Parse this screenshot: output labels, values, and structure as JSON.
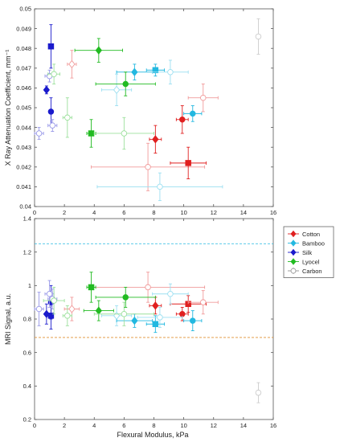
{
  "x_axis_label": "Flexural Modulus, kPa",
  "legend": [
    {
      "name": "Cotton",
      "color": "#e02020"
    },
    {
      "name": "Bamboo",
      "color": "#22b8e0"
    },
    {
      "name": "Silk",
      "color": "#1a1acc"
    },
    {
      "name": "Lyocel",
      "color": "#22bb22"
    },
    {
      "name": "Carbon",
      "color": "#909090"
    }
  ],
  "chart_data": [
    {
      "type": "scatter",
      "title": "",
      "xlabel": "",
      "ylabel": "X Ray Attenuation Coefficient, mm⁻¹",
      "xlim": [
        0,
        16
      ],
      "ylim": [
        0.04,
        0.05
      ],
      "xticks": [
        "0",
        "2",
        "4",
        "6",
        "8",
        "10",
        "12",
        "14",
        "16"
      ],
      "yticks": [
        "0.04",
        "0.041",
        "0.042",
        "0.043",
        "0.044",
        "0.045",
        "0.046",
        "0.047",
        "0.048",
        "0.049",
        "0.05"
      ],
      "grid": false,
      "points": [
        {
          "series": "Cotton",
          "marker": "diamond",
          "filled": false,
          "x": 2.5,
          "y": 0.0472,
          "xerr": 0.3,
          "yerr": 0.0007
        },
        {
          "series": "Cotton",
          "marker": "diamond",
          "filled": true,
          "x": 8.1,
          "y": 0.0434,
          "xerr": 0.4,
          "yerr": 0.0007
        },
        {
          "series": "Cotton",
          "marker": "circle",
          "filled": false,
          "x": 7.6,
          "y": 0.042,
          "xerr": 3.8,
          "yerr": 0.0012
        },
        {
          "series": "Cotton",
          "marker": "circle",
          "filled": true,
          "x": 9.9,
          "y": 0.0444,
          "xerr": 0.4,
          "yerr": 0.0007
        },
        {
          "series": "Cotton",
          "marker": "square",
          "filled": true,
          "x": 10.3,
          "y": 0.0422,
          "xerr": 1.2,
          "yerr": 0.0008
        },
        {
          "series": "Cotton",
          "marker": "circle",
          "filled": false,
          "x": 11.3,
          "y": 0.0455,
          "xerr": 1.0,
          "yerr": 0.0007
        },
        {
          "series": "Bamboo",
          "marker": "diamond",
          "filled": false,
          "x": 5.5,
          "y": 0.0459,
          "xerr": 1.0,
          "yerr": 0.0008
        },
        {
          "series": "Bamboo",
          "marker": "diamond",
          "filled": true,
          "x": 6.7,
          "y": 0.0468,
          "xerr": 1.2,
          "yerr": 0.0004
        },
        {
          "series": "Bamboo",
          "marker": "square",
          "filled": true,
          "x": 8.1,
          "y": 0.0469,
          "xerr": 0.6,
          "yerr": 0.0003
        },
        {
          "series": "Bamboo",
          "marker": "circle",
          "filled": false,
          "x": 9.1,
          "y": 0.0468,
          "xerr": 1.2,
          "yerr": 0.0006
        },
        {
          "series": "Bamboo",
          "marker": "circle",
          "filled": true,
          "x": 10.6,
          "y": 0.0447,
          "xerr": 0.6,
          "yerr": 0.0004
        },
        {
          "series": "Bamboo",
          "marker": "circle",
          "filled": false,
          "x": 8.4,
          "y": 0.041,
          "xerr": 4.2,
          "yerr": 0.0007
        },
        {
          "series": "Silk",
          "marker": "circle",
          "filled": false,
          "x": 0.3,
          "y": 0.0437,
          "xerr": 0.3,
          "yerr": 0.0003
        },
        {
          "series": "Silk",
          "marker": "diamond",
          "filled": true,
          "x": 0.8,
          "y": 0.0459,
          "xerr": 0.1,
          "yerr": 0.0002
        },
        {
          "series": "Silk",
          "marker": "square",
          "filled": true,
          "x": 1.1,
          "y": 0.0481,
          "xerr": 0.1,
          "yerr": 0.0011
        },
        {
          "series": "Silk",
          "marker": "circle",
          "filled": true,
          "x": 1.1,
          "y": 0.0448,
          "xerr": 0.1,
          "yerr": 0.0007
        },
        {
          "series": "Silk",
          "marker": "circle",
          "filled": false,
          "x": 1.0,
          "y": 0.0466,
          "xerr": 0.3,
          "yerr": 0.0003
        },
        {
          "series": "Silk",
          "marker": "circle",
          "filled": false,
          "x": 1.2,
          "y": 0.0441,
          "xerr": 0.3,
          "yerr": 0.0003
        },
        {
          "series": "Lyocel",
          "marker": "circle",
          "filled": false,
          "x": 1.3,
          "y": 0.0467,
          "xerr": 0.4,
          "yerr": 0.0005
        },
        {
          "series": "Lyocel",
          "marker": "circle",
          "filled": false,
          "x": 2.2,
          "y": 0.0445,
          "xerr": 0.3,
          "yerr": 0.001
        },
        {
          "series": "Lyocel",
          "marker": "diamond",
          "filled": true,
          "x": 4.3,
          "y": 0.0479,
          "xerr": 1.6,
          "yerr": 0.0006
        },
        {
          "series": "Lyocel",
          "marker": "square",
          "filled": true,
          "x": 3.8,
          "y": 0.0437,
          "xerr": 0.3,
          "yerr": 0.0007
        },
        {
          "series": "Lyocel",
          "marker": "circle",
          "filled": false,
          "x": 6.0,
          "y": 0.0437,
          "xerr": 2.0,
          "yerr": 0.0008
        },
        {
          "series": "Lyocel",
          "marker": "circle",
          "filled": true,
          "x": 6.1,
          "y": 0.0462,
          "xerr": 2.0,
          "yerr": 0.0006
        },
        {
          "series": "Carbon",
          "marker": "circle",
          "filled": false,
          "x": 15.0,
          "y": 0.0486,
          "xerr": 0.0,
          "yerr": 0.0009
        }
      ]
    },
    {
      "type": "scatter",
      "title": "",
      "xlabel": "Flexural Modulus, kPa",
      "ylabel": "MRI Signal, a.u.",
      "xlim": [
        0,
        16
      ],
      "ylim": [
        0.2,
        1.4
      ],
      "xticks": [
        "0",
        "2",
        "4",
        "6",
        "8",
        "10",
        "12",
        "14",
        "16"
      ],
      "yticks": [
        "0.2",
        "0.4",
        "0.6",
        "0.8",
        "1",
        "1.2",
        "1.4"
      ],
      "grid": false,
      "reference_lines": [
        {
          "color": "#22b8e0",
          "y": 1.25
        },
        {
          "color": "#e09030",
          "y": 0.69
        }
      ],
      "points": [
        {
          "series": "Cotton",
          "marker": "diamond",
          "filled": false,
          "x": 2.5,
          "y": 0.86,
          "xerr": 0.5,
          "yerr": 0.07
        },
        {
          "series": "Cotton",
          "marker": "diamond",
          "filled": true,
          "x": 8.1,
          "y": 0.88,
          "xerr": 0.4,
          "yerr": 0.05
        },
        {
          "series": "Cotton",
          "marker": "circle",
          "filled": false,
          "x": 7.6,
          "y": 0.99,
          "xerr": 3.8,
          "yerr": 0.09
        },
        {
          "series": "Cotton",
          "marker": "circle",
          "filled": true,
          "x": 9.9,
          "y": 0.83,
          "xerr": 0.4,
          "yerr": 0.04
        },
        {
          "series": "Cotton",
          "marker": "square",
          "filled": true,
          "x": 10.3,
          "y": 0.89,
          "xerr": 1.2,
          "yerr": 0.05
        },
        {
          "series": "Cotton",
          "marker": "circle",
          "filled": false,
          "x": 11.3,
          "y": 0.9,
          "xerr": 1.0,
          "yerr": 0.07
        },
        {
          "series": "Bamboo",
          "marker": "diamond",
          "filled": false,
          "x": 5.5,
          "y": 0.82,
          "xerr": 1.0,
          "yerr": 0.06
        },
        {
          "series": "Bamboo",
          "marker": "diamond",
          "filled": true,
          "x": 6.7,
          "y": 0.79,
          "xerr": 1.2,
          "yerr": 0.04
        },
        {
          "series": "Bamboo",
          "marker": "square",
          "filled": true,
          "x": 8.1,
          "y": 0.77,
          "xerr": 0.6,
          "yerr": 0.05
        },
        {
          "series": "Bamboo",
          "marker": "circle",
          "filled": false,
          "x": 9.1,
          "y": 0.95,
          "xerr": 1.2,
          "yerr": 0.06
        },
        {
          "series": "Bamboo",
          "marker": "circle",
          "filled": true,
          "x": 10.6,
          "y": 0.79,
          "xerr": 0.6,
          "yerr": 0.06
        },
        {
          "series": "Bamboo",
          "marker": "circle",
          "filled": false,
          "x": 8.4,
          "y": 0.81,
          "xerr": 1.5,
          "yerr": 0.06
        },
        {
          "series": "Silk",
          "marker": "circle",
          "filled": false,
          "x": 0.3,
          "y": 0.86,
          "xerr": 0.3,
          "yerr": 0.1
        },
        {
          "series": "Silk",
          "marker": "diamond",
          "filled": true,
          "x": 0.8,
          "y": 0.83,
          "xerr": 0.1,
          "yerr": 0.06
        },
        {
          "series": "Silk",
          "marker": "square",
          "filled": true,
          "x": 1.1,
          "y": 0.82,
          "xerr": 0.1,
          "yerr": 0.08
        },
        {
          "series": "Silk",
          "marker": "circle",
          "filled": true,
          "x": 1.1,
          "y": 0.9,
          "xerr": 0.1,
          "yerr": 0.1
        },
        {
          "series": "Silk",
          "marker": "circle",
          "filled": false,
          "x": 1.0,
          "y": 0.95,
          "xerr": 0.3,
          "yerr": 0.08
        },
        {
          "series": "Silk",
          "marker": "circle",
          "filled": false,
          "x": 1.2,
          "y": 0.92,
          "xerr": 0.3,
          "yerr": 0.06
        },
        {
          "series": "Lyocel",
          "marker": "circle",
          "filled": false,
          "x": 1.3,
          "y": 0.91,
          "xerr": 0.7,
          "yerr": 0.08
        },
        {
          "series": "Lyocel",
          "marker": "circle",
          "filled": false,
          "x": 2.2,
          "y": 0.82,
          "xerr": 0.3,
          "yerr": 0.06
        },
        {
          "series": "Lyocel",
          "marker": "diamond",
          "filled": true,
          "x": 4.3,
          "y": 0.85,
          "xerr": 1.0,
          "yerr": 0.06
        },
        {
          "series": "Lyocel",
          "marker": "square",
          "filled": true,
          "x": 3.8,
          "y": 0.99,
          "xerr": 0.3,
          "yerr": 0.09
        },
        {
          "series": "Lyocel",
          "marker": "circle",
          "filled": false,
          "x": 6.0,
          "y": 0.83,
          "xerr": 2.0,
          "yerr": 0.07
        },
        {
          "series": "Lyocel",
          "marker": "circle",
          "filled": true,
          "x": 6.1,
          "y": 0.93,
          "xerr": 2.0,
          "yerr": 0.06
        },
        {
          "series": "Carbon",
          "marker": "circle",
          "filled": false,
          "x": 15.0,
          "y": 0.36,
          "xerr": 0.0,
          "yerr": 0.06
        }
      ]
    }
  ]
}
